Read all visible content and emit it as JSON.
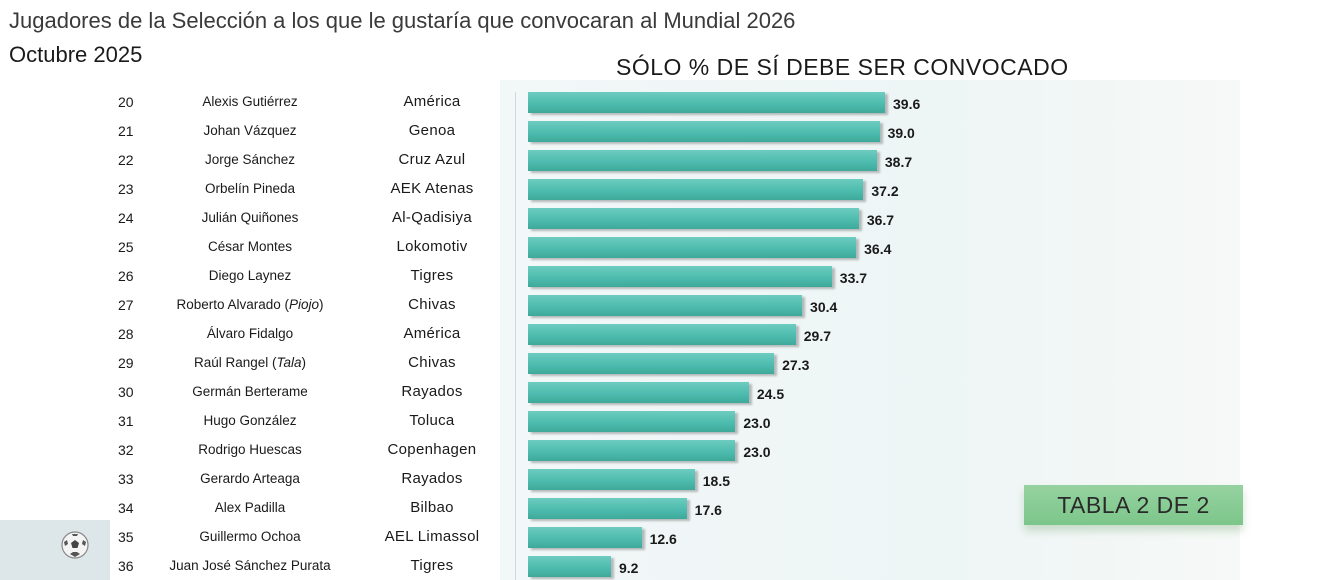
{
  "title": "Jugadores de la Selección a los que le gustaría que convocaran al Mundial 2026",
  "subtitle": "Octubre 2025",
  "chart_heading": "SÓLO % DE SÍ DEBE SER CONVOCADO",
  "badge": "TABLA 2 DE 2",
  "colors": {
    "bar": "#4dbcae",
    "badge": "#7cc68a"
  },
  "rows": [
    {
      "rank": "20",
      "player": "Alexis Gutiérrez",
      "team": "América"
    },
    {
      "rank": "21",
      "player": "Johan Vázquez",
      "team": "Genoa"
    },
    {
      "rank": "22",
      "player": "Jorge Sánchez",
      "team": "Cruz Azul"
    },
    {
      "rank": "23",
      "player": "Orbelín Pineda",
      "team": "AEK Atenas"
    },
    {
      "rank": "24",
      "player": "Julián Quiñones",
      "team": "Al-Qadisiya"
    },
    {
      "rank": "25",
      "player": "César Montes",
      "team": "Lokomotiv"
    },
    {
      "rank": "26",
      "player": "Diego Laynez",
      "team": "Tigres"
    },
    {
      "rank": "27",
      "player": "Roberto Alvarado (Piojo)",
      "team": "Chivas"
    },
    {
      "rank": "28",
      "player": "Álvaro Fidalgo",
      "team": "América"
    },
    {
      "rank": "29",
      "player": "Raúl Rangel (Tala)",
      "team": "Chivas"
    },
    {
      "rank": "30",
      "player": "Germán Berterame",
      "team": "Rayados"
    },
    {
      "rank": "31",
      "player": "Hugo González",
      "team": "Toluca"
    },
    {
      "rank": "32",
      "player": "Rodrigo Huescas",
      "team": "Copenhagen"
    },
    {
      "rank": "33",
      "player": "Gerardo Arteaga",
      "team": "Rayados"
    },
    {
      "rank": "34",
      "player": "Alex Padilla",
      "team": "Bilbao"
    },
    {
      "rank": "35",
      "player": "Guillermo Ochoa",
      "team": "AEL Limassol"
    },
    {
      "rank": "36",
      "player": "Juan José Sánchez Purata",
      "team": "Tigres"
    }
  ],
  "chart_data": {
    "type": "bar",
    "orientation": "horizontal",
    "title": "SÓLO % DE SÍ DEBE SER CONVOCADO",
    "categories": [
      "Alexis Gutiérrez",
      "Johan Vázquez",
      "Jorge Sánchez",
      "Orbelín Pineda",
      "Julián Quiñones",
      "César Montes",
      "Diego Laynez",
      "Roberto Alvarado (Piojo)",
      "Álvaro Fidalgo",
      "Raúl Rangel (Tala)",
      "Germán Berterame",
      "Hugo González",
      "Rodrigo Huescas",
      "Gerardo Arteaga",
      "Alex Padilla",
      "Guillermo Ochoa",
      "Juan José Sánchez Purata"
    ],
    "values": [
      39.6,
      39.0,
      38.7,
      37.2,
      36.7,
      36.4,
      33.7,
      30.4,
      29.7,
      27.3,
      24.5,
      23.0,
      23.0,
      18.5,
      17.6,
      12.6,
      9.2
    ],
    "value_labels": [
      "39.6",
      "39.0",
      "38.7",
      "37.2",
      "36.7",
      "36.4",
      "33.7",
      "30.4",
      "29.7",
      "27.3",
      "24.5",
      "23.0",
      "23.0",
      "18.5",
      "17.6",
      "12.6",
      "9.2"
    ],
    "xlim": [
      0,
      40
    ]
  }
}
